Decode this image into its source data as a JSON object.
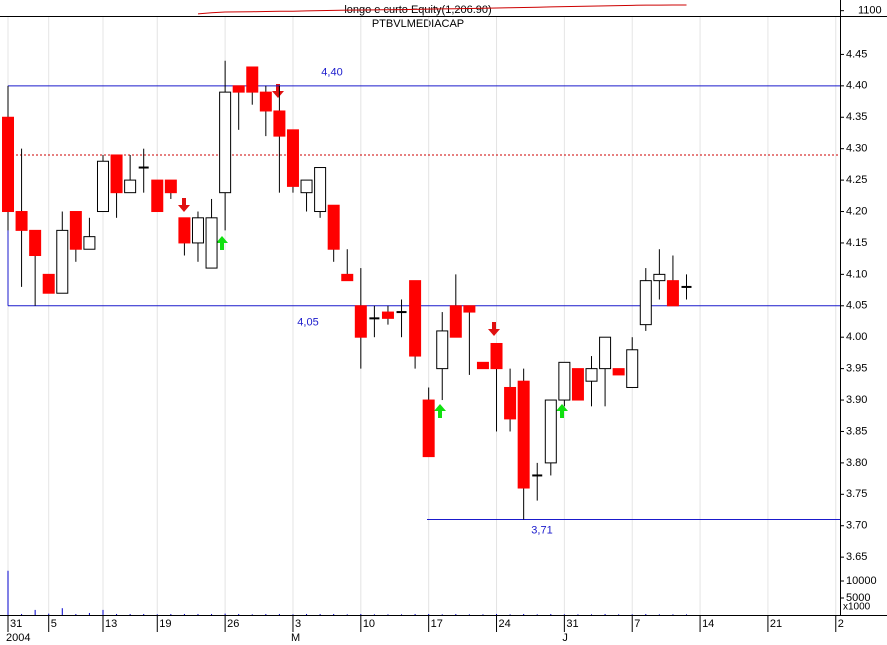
{
  "chart_data": {
    "type": "candlestick",
    "title": "longo e curto Equity(1,206.90)",
    "subtitle": "PTBVLMEDIACAP",
    "categories": [
      "31",
      null,
      null,
      "5",
      null,
      null,
      null,
      "13",
      null,
      null,
      null,
      "19",
      null,
      null,
      null,
      null,
      "26",
      null,
      null,
      null,
      null,
      "3",
      null,
      null,
      null,
      null,
      "10",
      null,
      null,
      null,
      null,
      "17",
      null,
      null,
      null,
      null,
      "24",
      null,
      null,
      null,
      null,
      "31",
      null,
      null,
      null,
      null,
      "7",
      null,
      null,
      null,
      null,
      "14",
      null,
      null,
      null,
      null,
      "21",
      null,
      null,
      null,
      null,
      "2"
    ],
    "groups": [
      "2004",
      null,
      null,
      null,
      null,
      null,
      null,
      null,
      null,
      null,
      null,
      null,
      null,
      null,
      null,
      null,
      null,
      null,
      null,
      null,
      null,
      "M",
      null,
      null,
      null,
      null,
      null,
      null,
      null,
      null,
      null,
      null,
      null,
      null,
      null,
      null,
      null,
      null,
      null,
      null,
      null,
      "J",
      null,
      null,
      null,
      null,
      null,
      null,
      null,
      null,
      null,
      null,
      null,
      null,
      null,
      null,
      null,
      null,
      null,
      null,
      null,
      null
    ],
    "open": [
      4.35,
      4.2,
      4.17,
      4.1,
      4.07,
      4.2,
      4.14,
      4.2,
      4.29,
      4.23,
      4.27,
      4.25,
      4.25,
      4.19,
      4.15,
      4.11,
      4.23,
      4.4,
      4.43,
      4.39,
      4.36,
      4.33,
      4.23,
      4.2,
      4.21,
      4.1,
      4.05,
      4.03,
      4.04,
      4.04,
      4.09,
      3.9,
      3.95,
      4.05,
      4.05,
      3.96,
      3.99,
      3.92,
      3.93,
      3.78,
      3.8,
      3.9,
      3.95,
      3.93,
      3.95,
      3.95,
      3.92,
      4.02,
      4.09,
      4.09,
      4.08,
      null,
      null,
      null,
      null,
      null,
      null,
      null,
      null,
      null,
      null,
      null
    ],
    "high": [
      4.4,
      4.3,
      4.17,
      4.1,
      4.2,
      4.2,
      4.19,
      4.29,
      4.29,
      4.29,
      4.3,
      4.25,
      4.25,
      4.19,
      4.2,
      4.22,
      4.44,
      4.4,
      4.43,
      4.4,
      4.4,
      4.33,
      4.25,
      4.27,
      4.21,
      4.14,
      4.11,
      4.05,
      4.05,
      4.06,
      4.09,
      3.92,
      4.04,
      4.1,
      4.05,
      3.96,
      3.99,
      3.95,
      3.95,
      3.8,
      3.9,
      3.96,
      3.95,
      3.97,
      4.0,
      3.95,
      4.0,
      4.11,
      4.14,
      4.13,
      4.1,
      null,
      null,
      null,
      null,
      null,
      null,
      null,
      null,
      null,
      null,
      null
    ],
    "low": [
      4.17,
      4.08,
      4.05,
      4.07,
      4.07,
      4.12,
      4.14,
      4.2,
      4.19,
      4.23,
      4.23,
      4.2,
      4.22,
      4.13,
      4.12,
      4.11,
      4.17,
      4.33,
      4.37,
      4.32,
      4.23,
      4.23,
      4.2,
      4.19,
      4.12,
      4.09,
      3.95,
      4.0,
      4.02,
      4.0,
      3.95,
      3.81,
      3.9,
      4.0,
      3.94,
      3.95,
      3.85,
      3.85,
      3.71,
      3.74,
      3.78,
      3.89,
      3.9,
      3.89,
      3.89,
      3.94,
      3.92,
      4.01,
      4.06,
      4.05,
      4.06,
      null,
      null,
      null,
      null,
      null,
      null,
      null,
      null,
      null,
      null,
      null
    ],
    "close": [
      4.2,
      4.17,
      4.13,
      4.07,
      4.17,
      4.14,
      4.16,
      4.28,
      4.23,
      4.25,
      4.27,
      4.2,
      4.23,
      4.15,
      4.19,
      4.19,
      4.39,
      4.39,
      4.39,
      4.36,
      4.32,
      4.24,
      4.25,
      4.27,
      4.14,
      4.09,
      4.0,
      4.03,
      4.03,
      4.04,
      3.97,
      3.81,
      4.01,
      4.0,
      4.04,
      3.95,
      3.95,
      3.87,
      3.76,
      3.78,
      3.9,
      3.96,
      3.9,
      3.95,
      4.0,
      3.94,
      3.98,
      4.09,
      4.1,
      4.05,
      4.08,
      null,
      null,
      null,
      null,
      null,
      null,
      null,
      null,
      null,
      null,
      null
    ],
    "up_color": "#ffffff",
    "down_color": "#ff0000",
    "ylim": [
      3.62,
      4.5
    ],
    "yticks": [
      3.65,
      {
        "value": 3.7,
        "label": "3.70"
      },
      3.75,
      {
        "value": 3.8,
        "label": "3.80"
      },
      3.85,
      {
        "value": 3.9,
        "label": "3.90"
      },
      3.95,
      {
        "value": 4.0,
        "label": "4.00"
      },
      4.05,
      {
        "value": 4.1,
        "label": "4.10"
      },
      4.15,
      {
        "value": 4.2,
        "label": "4.20"
      },
      4.25,
      {
        "value": 4.3,
        "label": "4.30"
      },
      4.35,
      {
        "value": 4.4,
        "label": "4.40"
      },
      4.45
    ],
    "levels": [
      {
        "value": 4.4,
        "label": "4,40"
      },
      {
        "value": 4.05,
        "label": "4,05"
      },
      {
        "value": 3.71,
        "label": "3,71"
      }
    ],
    "level_color": "#1a1acc",
    "reference_line": 4.29,
    "reference_color": "#cc0000",
    "volume": [
      13000,
      300,
      1500,
      400,
      2000,
      300,
      600,
      1500,
      300,
      300,
      300,
      200,
      300,
      300,
      300,
      300,
      400,
      300,
      200,
      300,
      300,
      200,
      300,
      300,
      300,
      200,
      300,
      200,
      200,
      200,
      300,
      300,
      200,
      300,
      200,
      200,
      300,
      200,
      300,
      200,
      300,
      200,
      200,
      200,
      300,
      200,
      200,
      300,
      200,
      200,
      200,
      null,
      null,
      null,
      null,
      null,
      null,
      null,
      null,
      null,
      null,
      null
    ],
    "volume_color": "#0000cc",
    "volume_ylim": [
      0,
      15000
    ],
    "volume_yticks": [
      10000,
      5000
    ],
    "volume_unit": "x1000",
    "equity": [
      null,
      null,
      null,
      null,
      null,
      null,
      null,
      null,
      null,
      null,
      null,
      null,
      null,
      null,
      1040,
      1060,
      1075,
      1078,
      1080,
      1085,
      1088,
      1090,
      1095,
      1100,
      1105,
      1110,
      1112,
      1115,
      1118,
      1120,
      1125,
      1130,
      1133,
      1135,
      1140,
      1145,
      1150,
      1155,
      1160,
      1165,
      1170,
      1175,
      1180,
      1185,
      1190,
      1195,
      1200,
      1203,
      1205,
      1206,
      1206.9,
      null,
      null,
      null,
      null,
      null,
      null,
      null,
      null,
      null,
      null,
      null
    ],
    "equity_color": "#cc0000",
    "equity_ylim": [
      1000,
      1300
    ],
    "equity_yticks": [
      1100
    ]
  }
}
